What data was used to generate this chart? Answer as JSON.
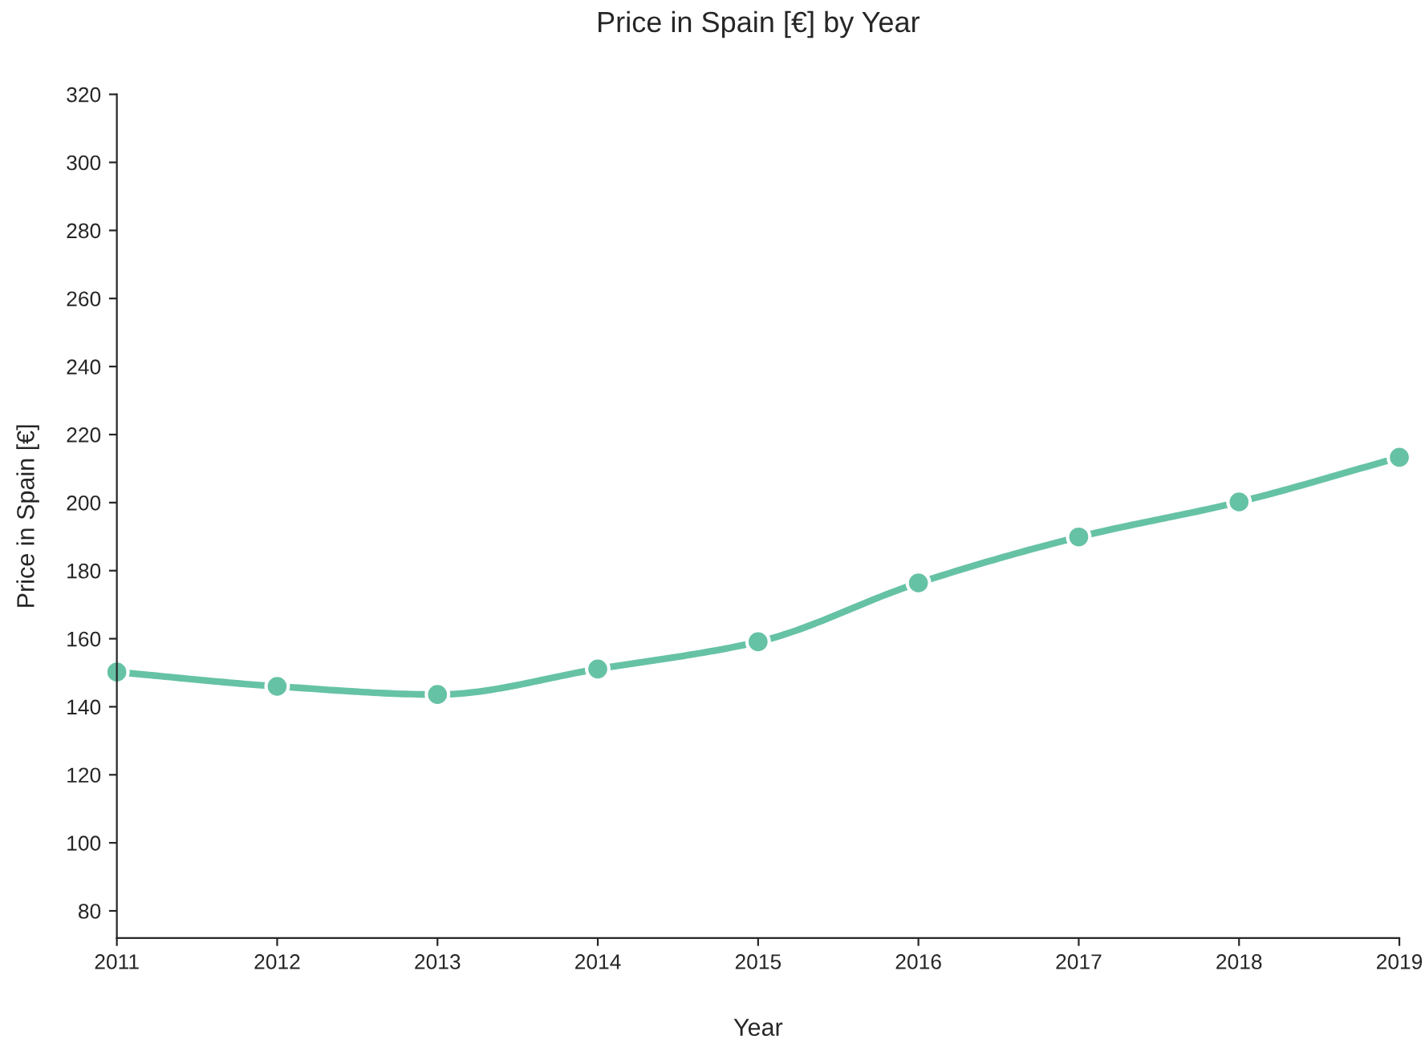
{
  "chart_data": {
    "type": "line",
    "title": "Price in Spain [€] by Year",
    "xlabel": "Year",
    "ylabel": "Price in Spain [€]",
    "x": [
      2011,
      2012,
      2013,
      2014,
      2015,
      2016,
      2017,
      2018,
      2019
    ],
    "series": [
      {
        "color": "#66c2a5",
        "values": [
          150.2,
          146.0,
          143.6,
          151.1,
          159.1,
          176.4,
          189.9,
          200.2,
          213.3
        ]
      }
    ],
    "xlim": [
      2011,
      2019
    ],
    "xticks": [
      2011,
      2012,
      2013,
      2014,
      2015,
      2016,
      2017,
      2018,
      2019
    ],
    "ylim": [
      72,
      320
    ],
    "yticks": [
      80,
      100,
      120,
      140,
      160,
      180,
      200,
      220,
      240,
      260,
      280,
      300,
      320
    ],
    "marker": "circle",
    "line_style": "solid",
    "grid": false,
    "legend": false
  }
}
